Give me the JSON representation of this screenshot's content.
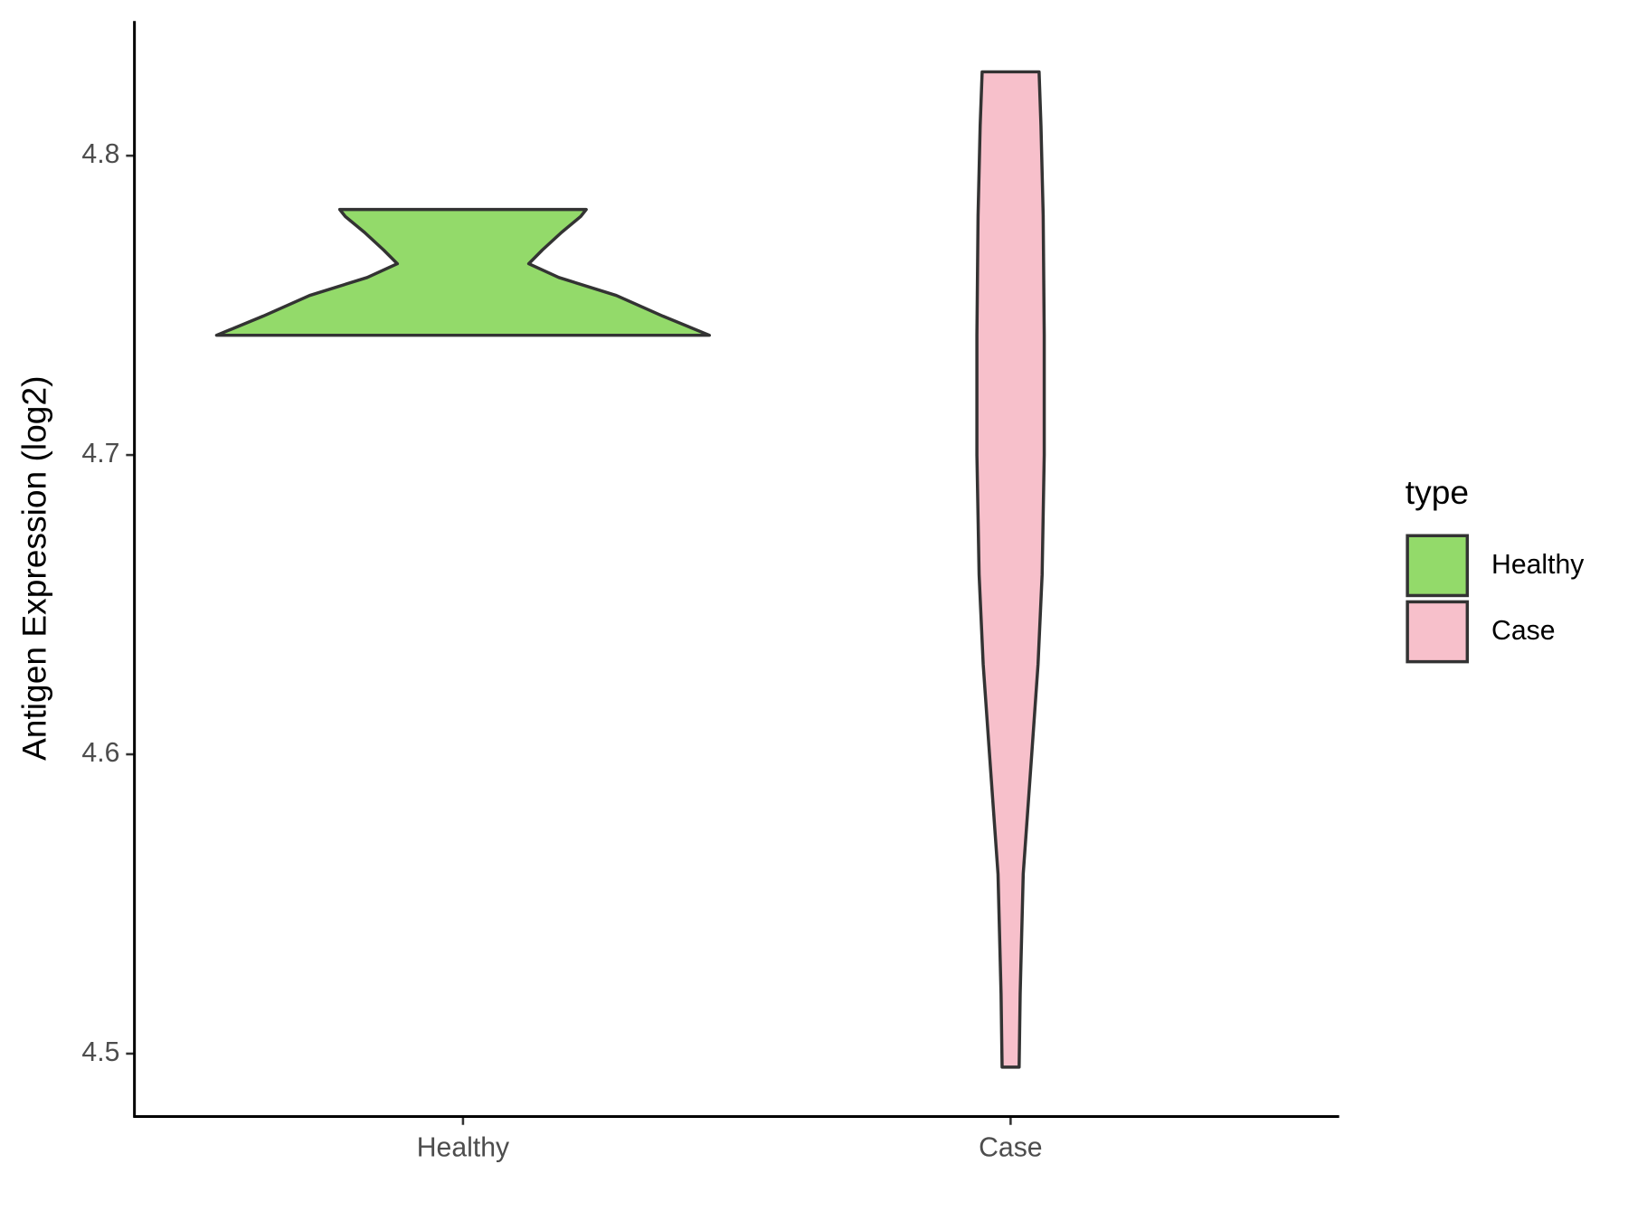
{
  "chart_data": {
    "type": "violin",
    "y_label": "Antigen Expression (log2)",
    "categories": [
      "Healthy",
      "Case"
    ],
    "legend_title": "type",
    "legend_position": "right",
    "outline_color": "#333333",
    "ylim": [
      4.479,
      4.845
    ],
    "yticks": [
      4.5,
      4.6,
      4.7,
      4.8
    ],
    "series": [
      {
        "name": "Healthy",
        "color": "#93da6a",
        "y": [
          4.74,
          4.7464,
          4.7533,
          4.7593,
          4.7639,
          4.7685,
          4.7744,
          4.7797,
          4.782
        ],
        "widths": [
          0.9,
          0.73,
          0.56,
          0.35,
          0.24,
          0.29,
          0.36,
          0.43,
          0.45
        ]
      },
      {
        "name": "Case",
        "color": "#f7c0cb",
        "y": [
          4.4955,
          4.52,
          4.56,
          4.6,
          4.63,
          4.66,
          4.7,
          4.74,
          4.78,
          4.81,
          4.828
        ],
        "widths": [
          0.031,
          0.035,
          0.046,
          0.077,
          0.1,
          0.115,
          0.123,
          0.123,
          0.119,
          0.111,
          0.104
        ]
      }
    ]
  }
}
